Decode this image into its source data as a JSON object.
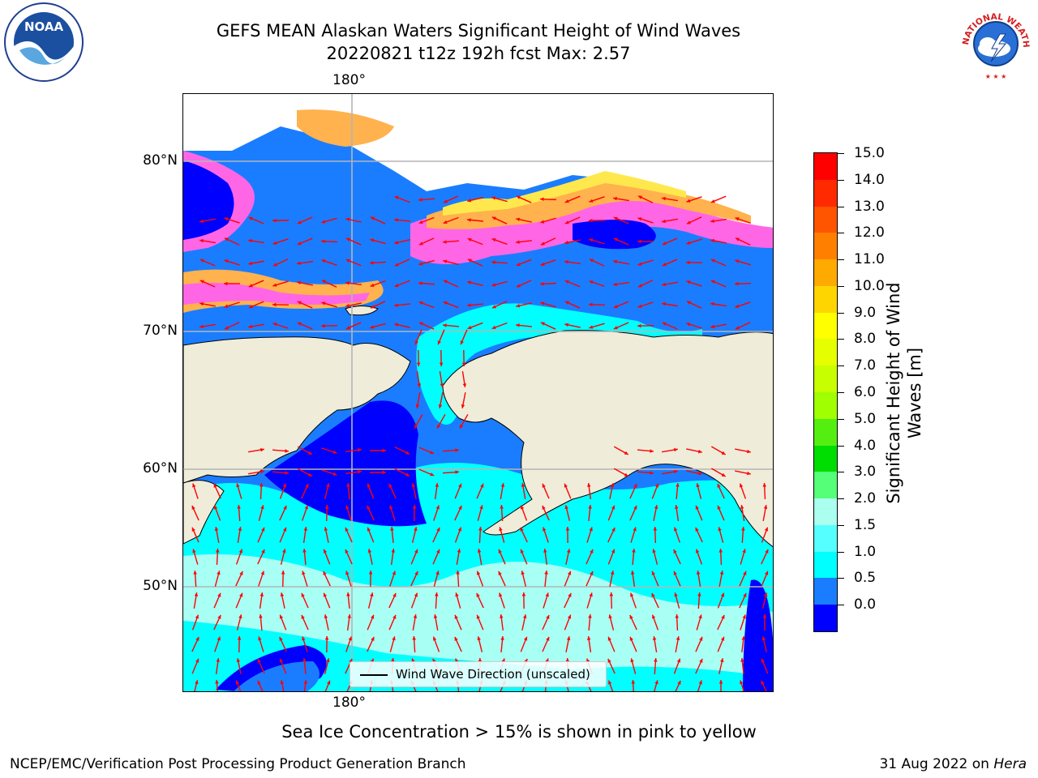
{
  "title": {
    "line1": "GEFS MEAN Alaskan Waters Significant Height of Wind Waves",
    "line2": "20220821 t12z 192h fcst   Max: 2.57"
  },
  "map": {
    "lon_label_top": "180°",
    "lon_label_bottom": "180°",
    "lat_labels": [
      "80°N",
      "70°N",
      "60°N",
      "50°N"
    ],
    "legend_text": "Wind Wave Direction (unscaled)",
    "colors": {
      "land": "#efecda",
      "ocean_base": "#1a7dff",
      "deep_blue": "#0000ff",
      "cyan": "#00ffff",
      "light_cyan": "#a8fff4",
      "ice_pink": "#ff66e6",
      "ice_orange": "#ffb24d",
      "ice_yellow": "#ffe84d",
      "arrow": "#ff0000"
    }
  },
  "colorbar": {
    "label": "Significant Height of Wind Waves [m]",
    "ticks": [
      "15.0",
      "14.0",
      "13.0",
      "12.0",
      "11.0",
      "10.0",
      "9.0",
      "8.0",
      "7.0",
      "6.0",
      "5.0",
      "4.0",
      "3.0",
      "2.0",
      "1.5",
      "1.0",
      "0.5",
      "0.0"
    ],
    "colors_top_to_bottom": [
      "#ff0000",
      "#ff2a00",
      "#ff5500",
      "#ff8000",
      "#ffaa00",
      "#ffd500",
      "#ffff00",
      "#e6ff00",
      "#c8ff00",
      "#a0ff00",
      "#55ee11",
      "#00dd00",
      "#55ff77",
      "#aaffee",
      "#55ffff",
      "#00ffff",
      "#1a7dff",
      "#0000ff"
    ]
  },
  "footer": {
    "note": "Sea Ice Concentration > 15% is shown in pink to yellow",
    "credit_left": "NCEP/EMC/Verification Post Processing Product Generation Branch",
    "credit_date": "31 Aug 2022 on",
    "credit_machine": "Hera"
  },
  "logos": {
    "noaa_text": "NOAA",
    "nws_text": "NATIONAL WEATHER SERVICE"
  }
}
